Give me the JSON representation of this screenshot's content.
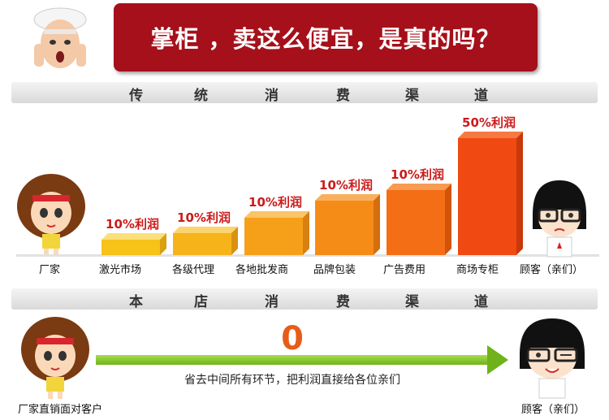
{
  "banner": {
    "text": "掌柜 ，卖这么便宜，是真的吗？"
  },
  "section1": {
    "chars": [
      "传",
      "统",
      "消",
      "费",
      "渠",
      "道"
    ]
  },
  "section2": {
    "chars": [
      "本",
      "店",
      "消",
      "费",
      "渠",
      "道"
    ]
  },
  "left_label": "厂家",
  "right_label": "顾客（亲们）",
  "chart_data": {
    "type": "bar",
    "categories": [
      "激光市场",
      "各级代理",
      "各地批发商",
      "品牌包装",
      "广告费用",
      "商场专柜"
    ],
    "values": [
      10,
      10,
      10,
      10,
      10,
      50
    ],
    "data_labels": [
      "10%利润",
      "10%利润",
      "10%利润",
      "10%利润",
      "10%利润",
      "50%利润"
    ]
  },
  "direct": {
    "value": "0",
    "caption": "省去中间所有环节，把利润直接给各位亲们",
    "left_label": "厂家直销面对客户",
    "right_label": "顾客（亲们）"
  },
  "colors": {
    "banner": "#a5101a",
    "arrow": "#6fb21a",
    "label": "#cc1a1a"
  }
}
